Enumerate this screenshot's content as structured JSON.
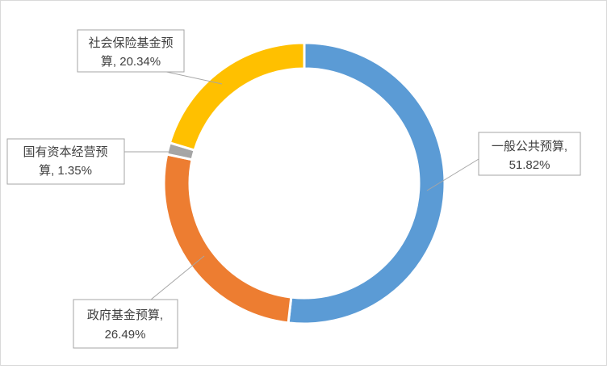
{
  "chart_data": {
    "type": "pie",
    "variant": "doughnut",
    "title": "",
    "categories": [
      "一般公共预算",
      "政府基金预算",
      "国有资本经营预算",
      "社会保险基金预算"
    ],
    "values": [
      51.82,
      26.49,
      1.35,
      20.34
    ],
    "colors": [
      "#5b9bd5",
      "#ed7d31",
      "#a5a5a5",
      "#ffc000"
    ],
    "labels": [
      {
        "line1": "一般公共预算,",
        "line2": "51.82%"
      },
      {
        "line1": "政府基金预算,",
        "line2": "26.49%"
      },
      {
        "line1": "国有资本经营预",
        "line2": "算, 1.35%"
      },
      {
        "line1": "社会保险基金预",
        "line2": "算, 20.34%"
      }
    ],
    "legend": "none"
  }
}
